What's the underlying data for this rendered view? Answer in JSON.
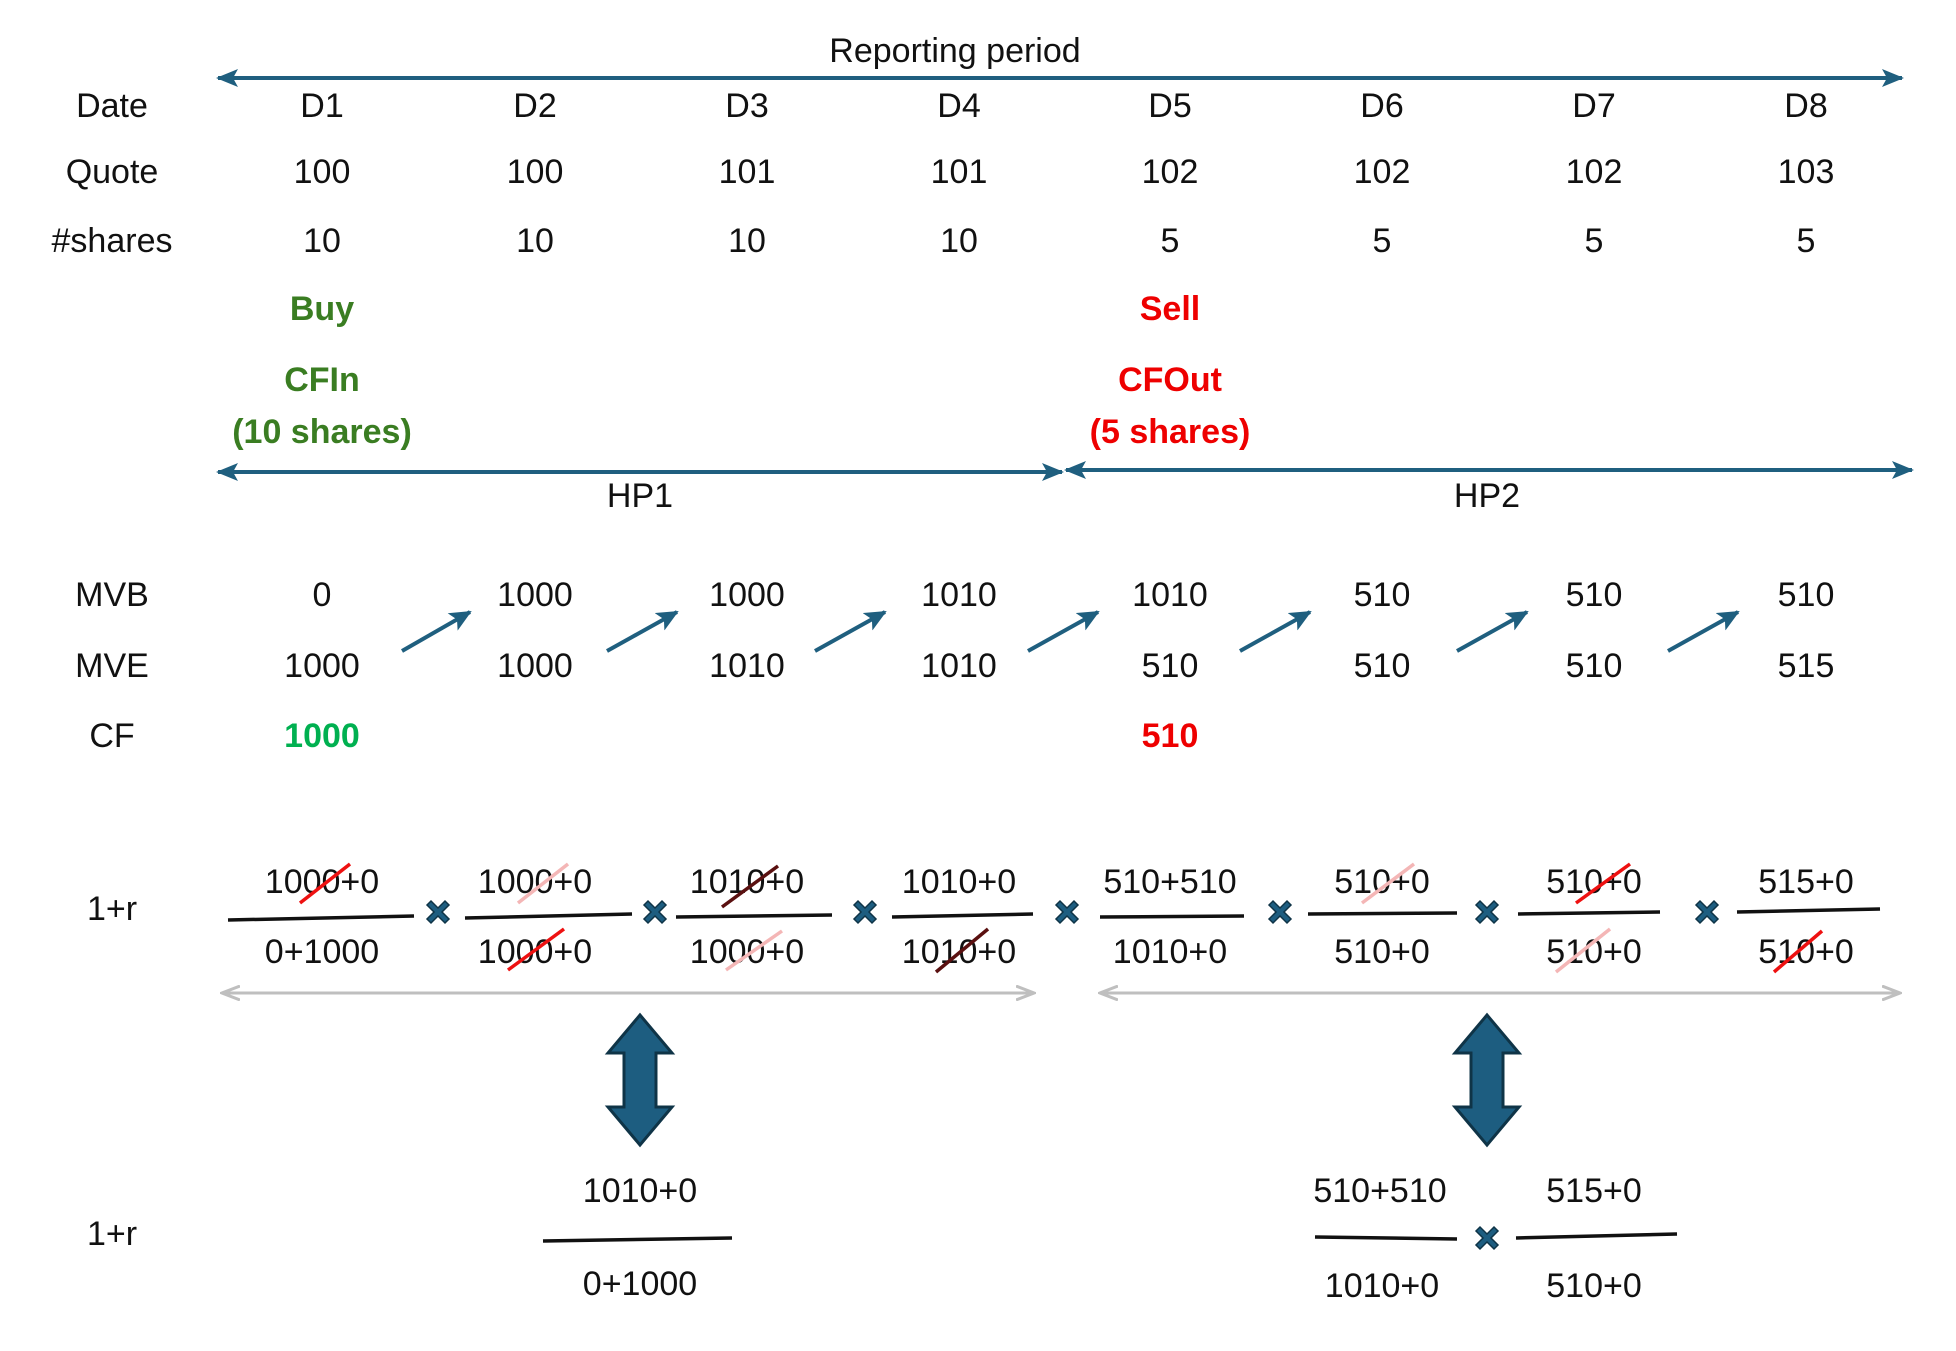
{
  "title": "Reporting period",
  "row_labels": {
    "date": "Date",
    "quote": "Quote",
    "shares": "#shares",
    "mvb": "MVB",
    "mve": "MVE",
    "cf": "CF",
    "ret1": "1+r",
    "ret2": "1+r"
  },
  "columns": [
    {
      "date": "D1",
      "quote": "100",
      "shares": "10",
      "mvb": "0",
      "mve": "1000",
      "cf": "1000",
      "num": "1000+0",
      "den": "0+1000"
    },
    {
      "date": "D2",
      "quote": "100",
      "shares": "10",
      "mvb": "1000",
      "mve": "1000",
      "cf": "",
      "num": "1000+0",
      "den": "1000+0"
    },
    {
      "date": "D3",
      "quote": "101",
      "shares": "10",
      "mvb": "1000",
      "mve": "1010",
      "cf": "",
      "num": "1010+0",
      "den": "1000+0"
    },
    {
      "date": "D4",
      "quote": "101",
      "shares": "10",
      "mvb": "1010",
      "mve": "1010",
      "cf": "",
      "num": "1010+0",
      "den": "1010+0"
    },
    {
      "date": "D5",
      "quote": "102",
      "shares": "5",
      "mvb": "1010",
      "mve": "510",
      "cf": "510",
      "num": "510+510",
      "den": "1010+0"
    },
    {
      "date": "D6",
      "quote": "102",
      "shares": "5",
      "mvb": "510",
      "mve": "510",
      "cf": "",
      "num": "510+0",
      "den": "510+0"
    },
    {
      "date": "D7",
      "quote": "102",
      "shares": "5",
      "mvb": "510",
      "mve": "510",
      "cf": "",
      "num": "510+0",
      "den": "510+0"
    },
    {
      "date": "D8",
      "quote": "103",
      "shares": "5",
      "mvb": "510",
      "mve": "515",
      "cf": "",
      "num": "515+0",
      "den": "510+0"
    }
  ],
  "events": {
    "buy": {
      "action": "Buy",
      "flow": "CFIn",
      "detail": "(10 shares)"
    },
    "sell": {
      "action": "Sell",
      "flow": "CFOut",
      "detail": "(5 shares)"
    }
  },
  "periods": {
    "hp1": "HP1",
    "hp2": "HP2"
  },
  "summary": {
    "hp1": {
      "num": "1010+0",
      "den": "0+1000"
    },
    "hp2a": {
      "num": "510+510",
      "den": "1010+0"
    },
    "hp2b": {
      "num": "515+0",
      "den": "510+0"
    }
  },
  "colors": {
    "arrow": "#1f5f7f",
    "buy": "#3a7d22",
    "sell": "#ee0000",
    "cf_in": "#00b050",
    "cf_out": "#ee0000",
    "grey_arrow": "#bfbfbf",
    "cancel_red": "#ee1111",
    "cancel_pink": "#f4b6b6",
    "cancel_dark": "#5a1010",
    "big_arrow_fill": "#1d5d80",
    "big_arrow_stroke": "#0f3447"
  }
}
